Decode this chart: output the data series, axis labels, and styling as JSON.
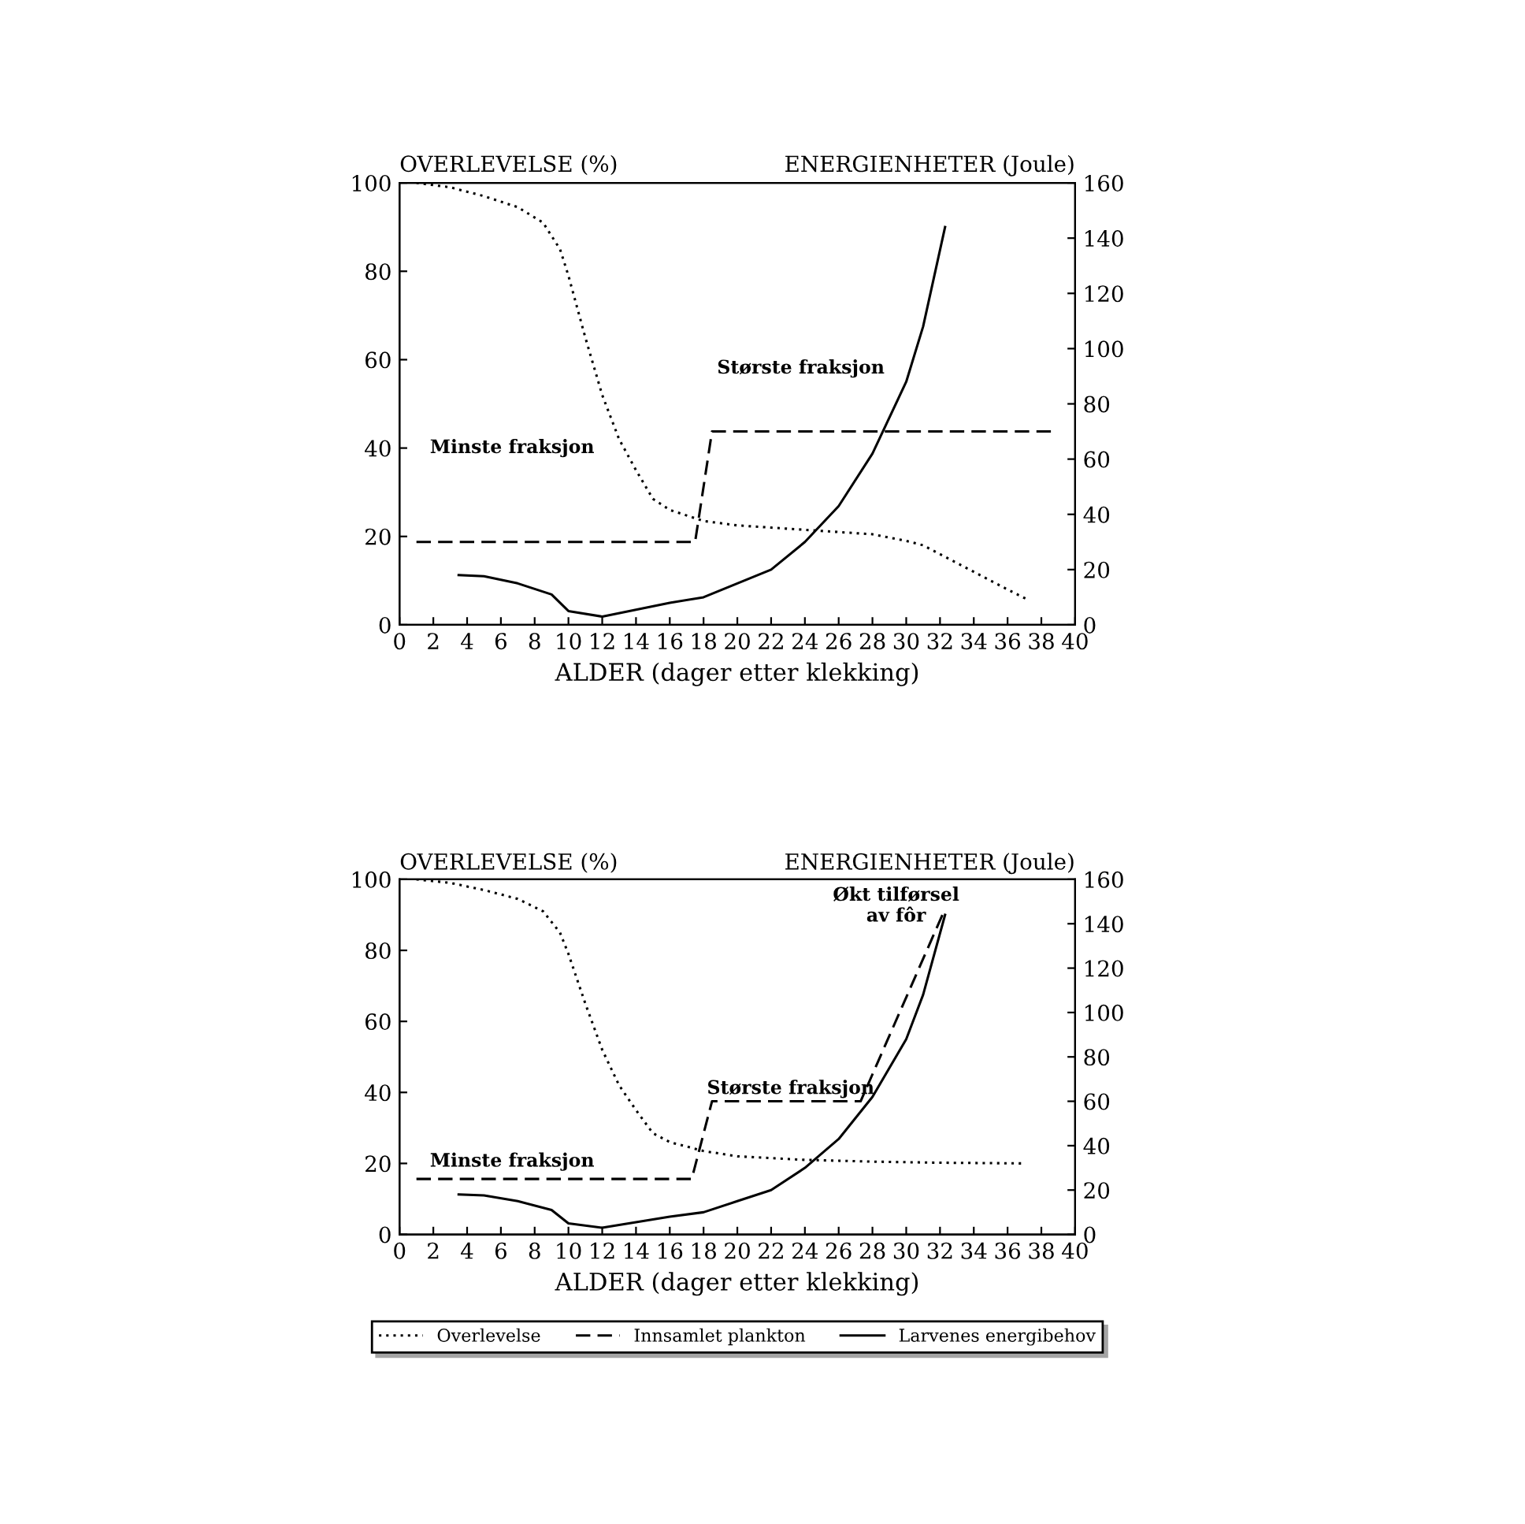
{
  "chart_data": [
    {
      "type": "line",
      "xlabel": "ALDER (dager etter klekking)",
      "ylabel": "OVERLEVELSE (%)",
      "y2label": "ENERGIENHETER (Joule)",
      "xlim": [
        0,
        40
      ],
      "xticks": [
        0,
        2,
        4,
        6,
        8,
        10,
        12,
        14,
        16,
        18,
        20,
        22,
        24,
        26,
        28,
        30,
        32,
        34,
        36,
        38,
        40
      ],
      "ylim": [
        0,
        100
      ],
      "yticks": [
        0,
        20,
        40,
        60,
        80,
        100
      ],
      "y2lim": [
        0,
        160
      ],
      "y2ticks": [
        0,
        20,
        40,
        60,
        80,
        100,
        120,
        140,
        160
      ],
      "grid": false,
      "series": [
        {
          "color": "#000000",
          "line_style": "dotted",
          "x": [
            1,
            3,
            5,
            7,
            8.5,
            9.5,
            10,
            11,
            12,
            13,
            14,
            15,
            16,
            18,
            20,
            22,
            24,
            26,
            28,
            30,
            31,
            34,
            36,
            37.3
          ],
          "values": [
            100,
            99,
            97,
            94.5,
            91,
            85,
            79,
            65,
            52,
            42,
            35,
            28.5,
            26,
            23.5,
            22.5,
            22,
            21.5,
            21,
            20.5,
            19,
            18,
            12,
            8,
            5.5
          ]
        },
        {
          "color": "#000000",
          "line_style": "dashed",
          "axis": "y2",
          "x": [
            1,
            17.5,
            18.5,
            38.8
          ],
          "values": [
            30,
            30,
            70,
            70
          ]
        },
        {
          "color": "#000000",
          "line_style": "solid",
          "axis": "y2",
          "x": [
            3.5,
            5,
            7,
            9,
            10,
            12,
            14,
            16,
            18,
            20,
            22,
            24,
            26,
            28,
            30,
            31,
            32.3
          ],
          "values": [
            18,
            17.6,
            15,
            11,
            5,
            3,
            5.5,
            8,
            10,
            15,
            20,
            30,
            43,
            62,
            88,
            108,
            144
          ]
        }
      ],
      "annotations": [
        "Minste fraksjon",
        "Største fraksjon"
      ]
    },
    {
      "type": "line",
      "xlabel": "ALDER (dager etter klekking)",
      "ylabel": "OVERLEVELSE (%)",
      "y2label": "ENERGIENHETER (Joule)",
      "xlim": [
        0,
        40
      ],
      "xticks": [
        0,
        2,
        4,
        6,
        8,
        10,
        12,
        14,
        16,
        18,
        20,
        22,
        24,
        26,
        28,
        30,
        32,
        34,
        36,
        38,
        40
      ],
      "ylim": [
        0,
        100
      ],
      "yticks": [
        0,
        20,
        40,
        60,
        80,
        100
      ],
      "y2lim": [
        0,
        160
      ],
      "y2ticks": [
        0,
        20,
        40,
        60,
        80,
        100,
        120,
        140,
        160
      ],
      "grid": false,
      "legend": "bottom",
      "series": [
        {
          "name": "Overlevelse",
          "color": "#000000",
          "line_style": "dotted",
          "x": [
            1,
            3,
            5,
            7,
            8.5,
            9.5,
            10,
            11,
            12,
            13,
            14,
            15,
            16,
            18,
            20,
            22,
            24,
            28,
            32,
            37
          ],
          "values": [
            100,
            99,
            97,
            94.5,
            91,
            85,
            79,
            65,
            52,
            42,
            35,
            28.5,
            26,
            23.5,
            22,
            21.5,
            21,
            20.5,
            20.2,
            20
          ]
        },
        {
          "name": "Innsamlet plankton",
          "color": "#000000",
          "line_style": "dashed",
          "axis": "y2",
          "x": [
            1,
            17.3,
            18.5,
            27.3,
            32.2
          ],
          "values": [
            25,
            25,
            60,
            60,
            145
          ]
        },
        {
          "name": "Larvenes energibehov",
          "color": "#000000",
          "line_style": "solid",
          "axis": "y2",
          "x": [
            3.5,
            5,
            7,
            9,
            10,
            12,
            14,
            16,
            18,
            20,
            22,
            24,
            26,
            28,
            30,
            31,
            32.3
          ],
          "values": [
            18,
            17.6,
            15,
            11,
            5,
            3,
            5.5,
            8,
            10,
            15,
            20,
            30,
            43,
            62,
            88,
            108,
            144
          ]
        }
      ],
      "annotations": [
        "Minste fraksjon",
        "Største fraksjon",
        "Økt tilførsel\nav fôr"
      ]
    }
  ]
}
